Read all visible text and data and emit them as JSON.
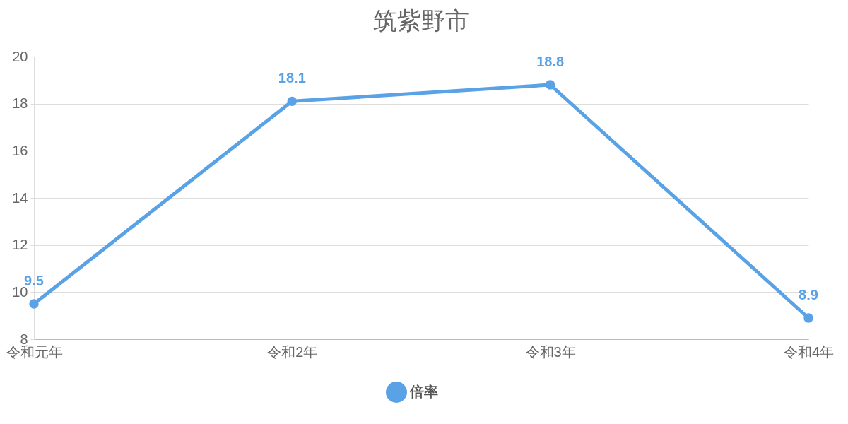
{
  "chart_data": {
    "type": "line",
    "title": "筑紫野市",
    "categories": [
      "令和元年",
      "令和2年",
      "令和3年",
      "令和4年"
    ],
    "series": [
      {
        "name": "倍率",
        "color": "#5aa2e6",
        "values": [
          9.5,
          18.1,
          18.8,
          8.9
        ]
      }
    ],
    "ylim": [
      8,
      20
    ],
    "yticks": [
      8,
      10,
      12,
      14,
      16,
      18,
      20
    ],
    "grid": "y",
    "legend": "bottom",
    "marker": "circle",
    "data_labels": true
  }
}
